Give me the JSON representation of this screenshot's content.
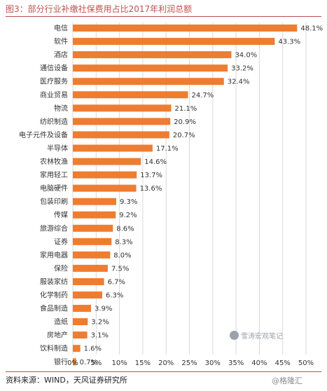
{
  "figure": {
    "title": "图3：部分行业补缴社保费用占比2017年利润总额",
    "source": "资料来源：WIND，天风证券研究所"
  },
  "watermarks": {
    "badge": "雪涛宏观笔记",
    "corner": "@格隆汇"
  },
  "colors": {
    "bar": "#ed7d31",
    "grid": "#d9d9d9",
    "title": "#c0504d",
    "text": "#333333"
  },
  "chart_data": {
    "type": "bar",
    "orientation": "horizontal",
    "categories": [
      "电信",
      "软件",
      "酒店",
      "通信设备",
      "医疗服务",
      "商业贸易",
      "物流",
      "纺织制造",
      "电子元件及设备",
      "半导体",
      "农林牧渔",
      "家用轻工",
      "电脑硬件",
      "包装印刷",
      "传媒",
      "旅游综合",
      "证券",
      "家用电器",
      "保险",
      "服装家纺",
      "化学制药",
      "食品制造",
      "造纸",
      "房地产",
      "饮料制造",
      "银行"
    ],
    "values": [
      48.1,
      43.3,
      34.0,
      33.2,
      32.4,
      24.7,
      21.1,
      20.9,
      20.7,
      17.1,
      14.6,
      13.7,
      13.6,
      9.3,
      9.2,
      8.6,
      8.3,
      8.0,
      7.5,
      6.7,
      6.3,
      3.9,
      3.2,
      3.1,
      1.6,
      0.7
    ],
    "value_labels": [
      "48.1%",
      "43.3%",
      "34.0%",
      "33.2%",
      "32.4%",
      "24.7%",
      "21.1%",
      "20.9%",
      "20.7%",
      "17.1%",
      "14.6%",
      "13.7%",
      "13.6%",
      "9.3%",
      "9.2%",
      "8.6%",
      "8.3%",
      "8.0%",
      "7.5%",
      "6.7%",
      "6.3%",
      "3.9%",
      "3.2%",
      "3.1%",
      "1.6%",
      "0.7%"
    ],
    "xlim": [
      0,
      50
    ],
    "xticks": [
      "0%",
      "5%",
      "10%",
      "15%",
      "20%",
      "25%",
      "30%",
      "35%",
      "40%",
      "45%",
      "50%"
    ],
    "grid": true,
    "legend": false
  }
}
